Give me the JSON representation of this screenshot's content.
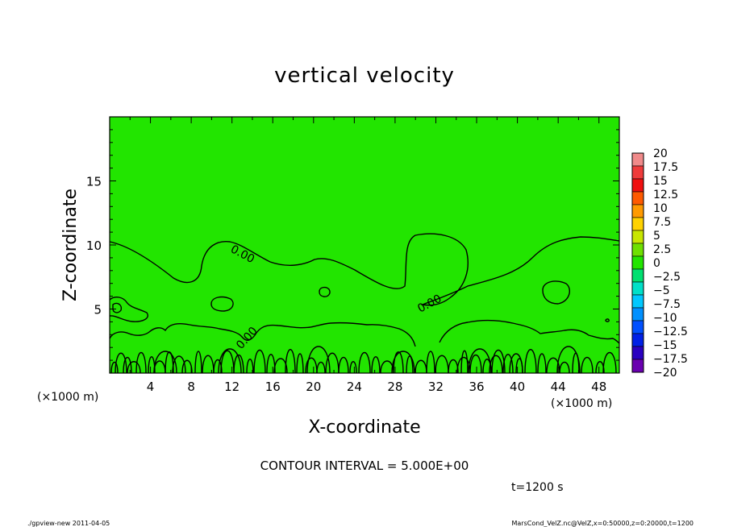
{
  "chart_data": {
    "type": "contour",
    "title": "vertical velocity",
    "xlabel": "X-coordinate",
    "ylabel": "Z-coordinate",
    "x_unit_left": "(×1000 m)",
    "x_unit_right": "(×1000 m)",
    "xlim": [
      0,
      50
    ],
    "ylim": [
      0,
      20
    ],
    "x_ticks": [
      "4",
      "8",
      "12",
      "16",
      "20",
      "24",
      "28",
      "32",
      "36",
      "40",
      "44",
      "48"
    ],
    "y_ticks": [
      "5",
      "10",
      "15"
    ],
    "contour_labels": [
      "0.00",
      "0.00",
      "0.00"
    ],
    "fill_color": "#22e500",
    "contour_interval_text": "CONTOUR INTERVAL = 5.000E+00",
    "time_text": "t=1200 s",
    "colorbar": {
      "levels": [
        "20",
        "17.5",
        "15",
        "12.5",
        "10",
        "7.5",
        "5",
        "2.5",
        "0",
        "−2.5",
        "−5",
        "−7.5",
        "−10",
        "−12.5",
        "−15",
        "−17.5",
        "−20"
      ],
      "colors": [
        "#f08a8a",
        "#ef3b3b",
        "#f01010",
        "#ff5a00",
        "#ff9a00",
        "#ffd200",
        "#c8e600",
        "#6ee000",
        "#22e500",
        "#00e070",
        "#00e0c8",
        "#00c8ff",
        "#0090ff",
        "#0050ff",
        "#0020e6",
        "#2a00c0",
        "#6a00b0"
      ]
    }
  },
  "footer": {
    "left": "./gpview-new   2011-04-05",
    "right": "MarsCond_VelZ.nc@VelZ,x=0:50000,z=0:20000,t=1200"
  }
}
